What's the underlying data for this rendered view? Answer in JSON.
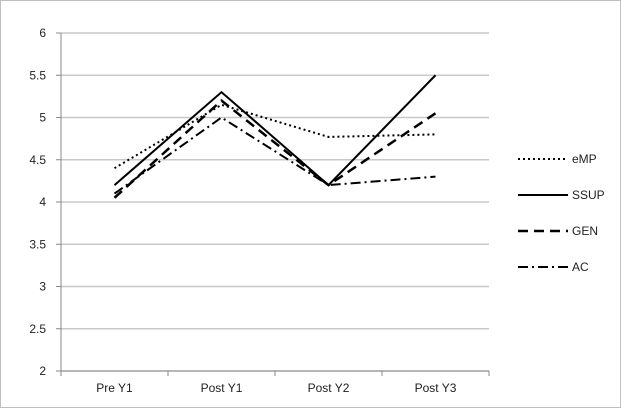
{
  "chart_data": {
    "type": "line",
    "title": "",
    "xlabel": "",
    "ylabel": "",
    "categories": [
      "Pre Y1",
      "Post Y1",
      "Post Y2",
      "Post Y3"
    ],
    "ylim": [
      2,
      6
    ],
    "yticks": [
      "2",
      "2.5",
      "3",
      "3.5",
      "4",
      "4.5",
      "5",
      "5.5",
      "6"
    ],
    "ytick_values": [
      2,
      2.5,
      3,
      3.5,
      4,
      4.5,
      5,
      5.5,
      6
    ],
    "grid": "horizontal",
    "legend_position": "right",
    "series": [
      {
        "name": "eMP",
        "values": [
          4.4,
          5.15,
          4.77,
          4.8
        ],
        "style": "dotted",
        "color": "#000000"
      },
      {
        "name": "SSUP",
        "values": [
          4.2,
          5.3,
          4.2,
          5.5
        ],
        "style": "solid",
        "color": "#000000"
      },
      {
        "name": "GEN",
        "values": [
          4.05,
          5.2,
          4.2,
          5.05
        ],
        "style": "dashed",
        "color": "#000000"
      },
      {
        "name": "AC",
        "values": [
          4.1,
          5.0,
          4.2,
          4.3
        ],
        "style": "dashdot",
        "color": "#000000"
      }
    ]
  }
}
